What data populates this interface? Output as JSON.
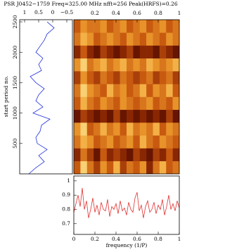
{
  "chart_data": [
    {
      "type": "line",
      "title": "PSR J0452−1759  Freq=325.00 MHz  nfft=256  Peak(HRFS)=0.26",
      "ylabel": "start period no.",
      "x": [
        0,
        100,
        200,
        300,
        400,
        500,
        600,
        700,
        800,
        900,
        1000,
        1100,
        1200,
        1300,
        1400,
        1500,
        1600,
        1700,
        1800,
        1900,
        2000,
        2100,
        2200,
        2300,
        2400,
        2500
      ],
      "series": [
        {
          "color": "#2030e0",
          "values": [
            0.85,
            0.6,
            0.3,
            0.5,
            0.2,
            0.55,
            0.6,
            0.45,
            0.4,
            0.1,
            0.7,
            0.35,
            0.6,
            0.5,
            0.3,
            0.6,
            0.8,
            0.4,
            0.5,
            0.35,
            0.6,
            0.45,
            0.3,
            0.2,
            -0.05,
            0.2
          ]
        }
      ],
      "xlim": [
        1.175,
        -0.7
      ],
      "xticks": [
        1,
        0.5,
        0,
        {
          "value": -0.5,
          "label": "−0.5"
        }
      ],
      "ylim": [
        0,
        2535
      ],
      "yticks": [
        500,
        1000,
        1500,
        2000,
        2500
      ]
    },
    {
      "type": "heatmap",
      "xlim": [
        0,
        1
      ],
      "xticks": [
        0.2,
        0.4,
        0.6,
        0.8,
        1
      ],
      "ylim": [
        0,
        2535
      ],
      "colormap": [
        "#1a0000",
        "#7a1a00",
        "#c85a10",
        "#f0a030",
        "#fff0a0"
      ],
      "z": [
        [
          0.5,
          0.9,
          0.6,
          0.4,
          0.7,
          0.5,
          0.8,
          0.4,
          0.6,
          0.5,
          0.7,
          0.3,
          0.6,
          0.8,
          0.5,
          0.6
        ],
        [
          0.3,
          0.6,
          0.4,
          0.2,
          0.5,
          0.3,
          0.4,
          0.3,
          0.2,
          0.4,
          0.3,
          0.2,
          0.4,
          0.3,
          0.5,
          0.3
        ],
        [
          0.6,
          0.8,
          0.7,
          0.5,
          0.6,
          0.7,
          0.5,
          0.6,
          0.7,
          0.5,
          0.8,
          0.6,
          0.5,
          0.7,
          0.6,
          0.5
        ],
        [
          0.7,
          0.9,
          0.5,
          0.6,
          0.8,
          0.6,
          0.7,
          0.5,
          0.8,
          0.6,
          0.7,
          0.6,
          0.8,
          0.5,
          0.7,
          0.6
        ],
        [
          0.2,
          0.4,
          0.3,
          0.2,
          0.3,
          0.2,
          0.4,
          0.2,
          0.3,
          0.2,
          0.3,
          0.2,
          0.3,
          0.2,
          0.4,
          0.2
        ],
        [
          0.5,
          0.8,
          0.6,
          0.5,
          0.7,
          0.6,
          0.5,
          0.7,
          0.6,
          0.5,
          0.6,
          0.7,
          0.5,
          0.6,
          0.5,
          0.7
        ],
        [
          0.6,
          0.9,
          0.7,
          0.6,
          0.5,
          0.8,
          0.6,
          0.7,
          0.5,
          0.6,
          0.8,
          0.5,
          0.7,
          0.6,
          0.8,
          0.5
        ],
        [
          0.4,
          0.7,
          0.5,
          0.4,
          0.6,
          0.5,
          0.4,
          0.6,
          0.5,
          0.4,
          0.5,
          0.6,
          0.4,
          0.5,
          0.6,
          0.4
        ],
        [
          0.7,
          0.9,
          0.6,
          0.7,
          0.8,
          0.6,
          0.7,
          0.8,
          0.6,
          0.7,
          0.6,
          0.8,
          0.7,
          0.6,
          0.7,
          0.8
        ],
        [
          0.3,
          0.5,
          0.3,
          0.2,
          0.4,
          0.3,
          0.2,
          0.3,
          0.4,
          0.2,
          0.3,
          0.3,
          0.2,
          0.4,
          0.3,
          0.2
        ],
        [
          0.6,
          0.8,
          0.7,
          0.5,
          0.6,
          0.7,
          0.6,
          0.5,
          0.7,
          0.6,
          0.5,
          0.7,
          0.6,
          0.5,
          0.7,
          0.6
        ],
        [
          0.5,
          0.7,
          0.6,
          0.6,
          0.7,
          0.5,
          0.6,
          0.7,
          0.5,
          0.6,
          0.7,
          0.5,
          0.6,
          0.7,
          0.5,
          0.6
        ]
      ]
    },
    {
      "type": "line",
      "xlabel": "frequency (1/P)",
      "x": [
        0,
        0.02,
        0.04,
        0.06,
        0.08,
        0.1,
        0.12,
        0.14,
        0.16,
        0.18,
        0.2,
        0.22,
        0.24,
        0.26,
        0.28,
        0.3,
        0.32,
        0.34,
        0.36,
        0.38,
        0.4,
        0.42,
        0.44,
        0.46,
        0.48,
        0.5,
        0.52,
        0.54,
        0.56,
        0.58,
        0.6,
        0.62,
        0.64,
        0.66,
        0.68,
        0.7,
        0.72,
        0.74,
        0.76,
        0.78,
        0.8,
        0.82,
        0.84,
        0.86,
        0.88,
        0.9,
        0.92,
        0.94,
        0.96,
        0.98,
        1
      ],
      "series": [
        {
          "color": "#e03030",
          "values": [
            0.78,
            0.84,
            0.9,
            0.82,
            0.95,
            0.8,
            0.86,
            0.74,
            0.8,
            0.88,
            0.78,
            0.83,
            0.76,
            0.85,
            0.8,
            0.79,
            0.87,
            0.75,
            0.82,
            0.8,
            0.84,
            0.77,
            0.86,
            0.79,
            0.81,
            0.76,
            0.85,
            0.8,
            0.78,
            0.88,
            0.92,
            0.79,
            0.83,
            0.74,
            0.82,
            0.86,
            0.78,
            0.8,
            0.85,
            0.77,
            0.83,
            0.8,
            0.87,
            0.76,
            0.82,
            0.9,
            0.8,
            0.84,
            0.79,
            0.86,
            0.81
          ]
        }
      ],
      "xlim": [
        0,
        1
      ],
      "xticks": [
        0,
        0.2,
        0.4,
        0.6,
        0.8,
        1
      ],
      "ylim": [
        0.625,
        1.034
      ],
      "yticks": [
        0.7,
        0.8,
        0.9,
        1
      ]
    }
  ]
}
